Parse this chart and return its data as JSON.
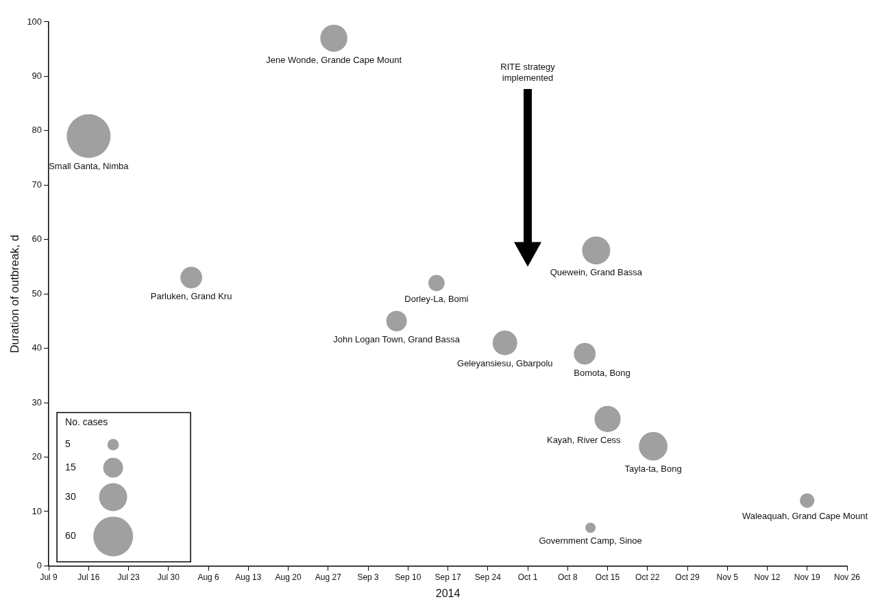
{
  "chart_data": {
    "type": "bubble",
    "xlabel": "2014",
    "ylabel": "Duration of outbreak, d",
    "legend_title": "No. cases",
    "size_legend": [
      5,
      15,
      30,
      60
    ],
    "legend": "bottom left",
    "grid": false,
    "xlim": [
      "2014-07-09",
      "2014-11-26"
    ],
    "xticks": [
      {
        "value": "2014-07-09",
        "label": "Jul 9"
      },
      {
        "value": "2014-07-16",
        "label": "Jul 16"
      },
      {
        "value": "2014-07-23",
        "label": "Jul 23"
      },
      {
        "value": "2014-07-30",
        "label": "Jul 30"
      },
      {
        "value": "2014-08-06",
        "label": "Aug 6"
      },
      {
        "value": "2014-08-13",
        "label": "Aug 13"
      },
      {
        "value": "2014-08-20",
        "label": "Aug 20"
      },
      {
        "value": "2014-08-27",
        "label": "Aug 27"
      },
      {
        "value": "2014-09-03",
        "label": "Sep 3"
      },
      {
        "value": "2014-09-10",
        "label": "Sep 10"
      },
      {
        "value": "2014-09-17",
        "label": "Sep 17"
      },
      {
        "value": "2014-09-24",
        "label": "Sep 24"
      },
      {
        "value": "2014-10-01",
        "label": "Oct 1"
      },
      {
        "value": "2014-10-08",
        "label": "Oct 8"
      },
      {
        "value": "2014-10-15",
        "label": "Oct 15"
      },
      {
        "value": "2014-10-22",
        "label": "Oct 22"
      },
      {
        "value": "2014-10-29",
        "label": "Oct 29"
      },
      {
        "value": "2014-11-05",
        "label": "Nov 5"
      },
      {
        "value": "2014-11-12",
        "label": "Nov 12"
      },
      {
        "value": "2014-11-19",
        "label": "Nov 19"
      },
      {
        "value": "2014-11-26",
        "label": "Nov 26"
      }
    ],
    "ylim": [
      0,
      100
    ],
    "yticks": [
      0,
      10,
      20,
      30,
      40,
      50,
      60,
      70,
      80,
      90,
      100
    ],
    "annotations": [
      "RITE strategy implemented"
    ],
    "series": [
      {
        "name": "Small Ganta, Nimba",
        "color": "#a0a0a0",
        "x": [
          "2014-07-16"
        ],
        "values": [
          79
        ],
        "sizes": [
          73
        ]
      },
      {
        "name": "Parluken, Grand Kru",
        "color": "#a0a0a0",
        "x": [
          "2014-08-03"
        ],
        "values": [
          53
        ],
        "sizes": [
          18
        ]
      },
      {
        "name": "Jene Wonde, Grande Cape Mount",
        "color": "#a0a0a0",
        "x": [
          "2014-08-28"
        ],
        "values": [
          97
        ],
        "sizes": [
          28
        ]
      },
      {
        "name": "John Logan Town, Grand Bassa",
        "color": "#a0a0a0",
        "x": [
          "2014-09-08"
        ],
        "values": [
          45
        ],
        "sizes": [
          16
        ]
      },
      {
        "name": "Dorley-La, Bomi",
        "color": "#a0a0a0",
        "x": [
          "2014-09-15"
        ],
        "values": [
          52
        ],
        "sizes": [
          10
        ]
      },
      {
        "name": "Geleyansiesu, Gbarpolu",
        "color": "#a0a0a0",
        "x": [
          "2014-09-27"
        ],
        "values": [
          41
        ],
        "sizes": [
          23
        ]
      },
      {
        "name": "Bomota, Bong",
        "color": "#a0a0a0",
        "x": [
          "2014-10-11"
        ],
        "values": [
          39
        ],
        "sizes": [
          18
        ]
      },
      {
        "name": "Government Camp, Sinoe",
        "color": "#a0a0a0",
        "x": [
          "2014-10-12"
        ],
        "values": [
          7
        ],
        "sizes": [
          4
        ]
      },
      {
        "name": "Quewein, Grand Bassa",
        "color": "#a0a0a0",
        "x": [
          "2014-10-13"
        ],
        "values": [
          58
        ],
        "sizes": [
          30
        ]
      },
      {
        "name": "Kayah, River Cess",
        "color": "#a0a0a0",
        "x": [
          "2014-10-15"
        ],
        "values": [
          27
        ],
        "sizes": [
          26
        ]
      },
      {
        "name": "Tayla-ta, Bong",
        "color": "#a0a0a0",
        "x": [
          "2014-10-23"
        ],
        "values": [
          22
        ],
        "sizes": [
          31
        ]
      },
      {
        "name": "Waleaquah, Grand Cape Mount",
        "color": "#a0a0a0",
        "x": [
          "2014-11-19"
        ],
        "values": [
          12
        ],
        "sizes": [
          8
        ]
      }
    ]
  }
}
